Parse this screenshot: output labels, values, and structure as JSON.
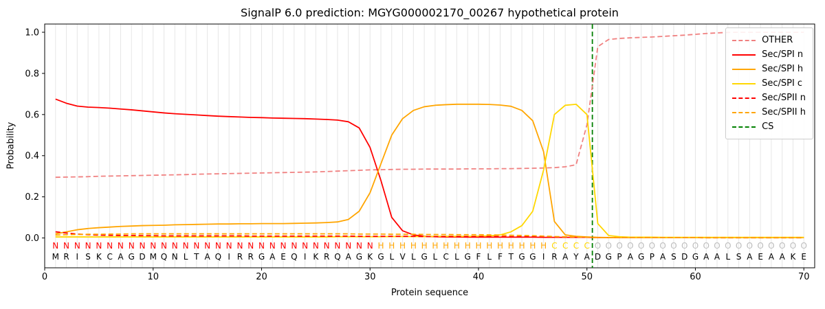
{
  "chart_data": {
    "type": "line",
    "title": "SignalP 6.0 prediction: MGYG000002170_00267 hypothetical protein",
    "xlabel": "Protein sequence",
    "ylabel": "Probability",
    "xlim": [
      0,
      71
    ],
    "ylim": [
      -0.145,
      1.04
    ],
    "x_ticks": [
      0,
      10,
      20,
      30,
      40,
      50,
      60,
      70
    ],
    "y_ticks": [
      0.0,
      0.2,
      0.4,
      0.6,
      0.8,
      1.0
    ],
    "grid": "vertical-gridline-per-residue",
    "grid_color": "#e6e6e6",
    "legend_position": "upper-right",
    "x_start": 1,
    "sequence": "MRISKCAGDMQNLTAQIRRGAEQIKRQAGKGLVLGLCLGFLFTGGIRAYADGPAGPASDGAALSAEAAKE",
    "sequence_color": "#000000",
    "regions": [
      {
        "label": "N",
        "start": 1,
        "end": 30,
        "color": "#ff0000"
      },
      {
        "label": "H",
        "start": 31,
        "end": 46,
        "color": "#ffa500"
      },
      {
        "label": "C",
        "start": 47,
        "end": 50,
        "color": "#ffd700"
      },
      {
        "label": "O",
        "start": 51,
        "end": 70,
        "color": "#bdbdbd"
      }
    ],
    "cs_line": {
      "name": "CS",
      "x": 50.5,
      "color": "#008000",
      "dash": "dashed"
    },
    "series": [
      {
        "name": "OTHER",
        "color": "#f08080",
        "dash": "dashed",
        "values": [
          0.295,
          0.296,
          0.297,
          0.298,
          0.3,
          0.301,
          0.302,
          0.303,
          0.304,
          0.305,
          0.306,
          0.307,
          0.308,
          0.31,
          0.311,
          0.312,
          0.313,
          0.314,
          0.315,
          0.316,
          0.317,
          0.318,
          0.319,
          0.32,
          0.321,
          0.323,
          0.325,
          0.327,
          0.329,
          0.331,
          0.332,
          0.333,
          0.334,
          0.334,
          0.335,
          0.335,
          0.335,
          0.335,
          0.336,
          0.336,
          0.336,
          0.337,
          0.337,
          0.338,
          0.339,
          0.34,
          0.342,
          0.346,
          0.356,
          0.55,
          0.93,
          0.965,
          0.97,
          0.973,
          0.975,
          0.977,
          0.98,
          0.983,
          0.986,
          0.99,
          0.994,
          0.997,
          0.999,
          1.0,
          1.0,
          1.0,
          1.0,
          1.0,
          1.0,
          1.0
        ]
      },
      {
        "name": "Sec/SPI n",
        "color": "#ff0000",
        "dash": "solid",
        "values": [
          0.675,
          0.655,
          0.641,
          0.636,
          0.634,
          0.631,
          0.627,
          0.623,
          0.618,
          0.613,
          0.608,
          0.604,
          0.601,
          0.598,
          0.595,
          0.592,
          0.59,
          0.588,
          0.586,
          0.585,
          0.583,
          0.582,
          0.581,
          0.58,
          0.578,
          0.576,
          0.573,
          0.565,
          0.535,
          0.44,
          0.28,
          0.1,
          0.035,
          0.015,
          0.008,
          0.006,
          0.005,
          0.005,
          0.004,
          0.004,
          0.004,
          0.004,
          0.004,
          0.004,
          0.004,
          0.003,
          0.003,
          0.003,
          0.003,
          0.003,
          0.002,
          0.002,
          0.002,
          0.002,
          0.002,
          0.002,
          0.002,
          0.002,
          0.002,
          0.002,
          0.002,
          0.002,
          0.002,
          0.002,
          0.002,
          0.002,
          0.002,
          0.002,
          0.002,
          0.002
        ]
      },
      {
        "name": "Sec/SPI h",
        "color": "#ffa500",
        "dash": "solid",
        "values": [
          0.02,
          0.03,
          0.04,
          0.046,
          0.05,
          0.053,
          0.056,
          0.058,
          0.06,
          0.061,
          0.062,
          0.064,
          0.065,
          0.066,
          0.067,
          0.068,
          0.068,
          0.069,
          0.069,
          0.07,
          0.07,
          0.07,
          0.071,
          0.072,
          0.073,
          0.075,
          0.078,
          0.09,
          0.13,
          0.22,
          0.36,
          0.5,
          0.58,
          0.62,
          0.638,
          0.645,
          0.648,
          0.65,
          0.65,
          0.65,
          0.649,
          0.646,
          0.64,
          0.62,
          0.57,
          0.42,
          0.08,
          0.015,
          0.008,
          0.005,
          0.003,
          0.002,
          0.002,
          0.002,
          0.002,
          0.002,
          0.002,
          0.002,
          0.002,
          0.002,
          0.002,
          0.002,
          0.002,
          0.002,
          0.002,
          0.002,
          0.002,
          0.002,
          0.002,
          0.002
        ]
      },
      {
        "name": "Sec/SPI c",
        "color": "#ffd700",
        "dash": "solid",
        "values": [
          0.005,
          0.005,
          0.005,
          0.005,
          0.005,
          0.005,
          0.005,
          0.005,
          0.005,
          0.005,
          0.005,
          0.005,
          0.005,
          0.005,
          0.005,
          0.005,
          0.005,
          0.005,
          0.005,
          0.005,
          0.005,
          0.005,
          0.005,
          0.005,
          0.005,
          0.005,
          0.006,
          0.006,
          0.006,
          0.006,
          0.006,
          0.007,
          0.007,
          0.007,
          0.007,
          0.008,
          0.008,
          0.008,
          0.008,
          0.009,
          0.01,
          0.015,
          0.03,
          0.06,
          0.13,
          0.33,
          0.6,
          0.645,
          0.65,
          0.6,
          0.07,
          0.012,
          0.006,
          0.004,
          0.004,
          0.004,
          0.003,
          0.003,
          0.003,
          0.003,
          0.003,
          0.003,
          0.003,
          0.003,
          0.003,
          0.003,
          0.003,
          0.003,
          0.003,
          0.003
        ]
      },
      {
        "name": "Sec/SPII n",
        "color": "#ff0000",
        "dash": "dashed",
        "values": [
          0.03,
          0.024,
          0.019,
          0.016,
          0.014,
          0.013,
          0.012,
          0.012,
          0.011,
          0.011,
          0.01,
          0.01,
          0.01,
          0.01,
          0.01,
          0.01,
          0.01,
          0.01,
          0.009,
          0.009,
          0.009,
          0.009,
          0.009,
          0.009,
          0.009,
          0.009,
          0.009,
          0.009,
          0.008,
          0.008,
          0.008,
          0.008,
          0.008,
          0.008,
          0.007,
          0.007,
          0.007,
          0.007,
          0.007,
          0.007,
          0.007,
          0.007,
          0.006,
          0.006,
          0.006,
          0.005,
          0.005,
          0.004,
          0.004,
          0.003,
          0.002,
          0.002,
          0.002,
          0.002,
          0.002,
          0.002,
          0.002,
          0.002,
          0.002,
          0.002,
          0.001,
          0.001,
          0.001,
          0.001,
          0.001,
          0.001,
          0.001,
          0.001,
          0.001,
          0.001
        ]
      },
      {
        "name": "Sec/SPII h",
        "color": "#ffa500",
        "dash": "dashed",
        "values": [
          0.014,
          0.016,
          0.017,
          0.018,
          0.018,
          0.019,
          0.019,
          0.02,
          0.02,
          0.02,
          0.02,
          0.02,
          0.02,
          0.02,
          0.02,
          0.02,
          0.02,
          0.02,
          0.02,
          0.02,
          0.02,
          0.02,
          0.02,
          0.02,
          0.02,
          0.02,
          0.02,
          0.02,
          0.019,
          0.019,
          0.019,
          0.018,
          0.018,
          0.018,
          0.017,
          0.017,
          0.017,
          0.016,
          0.016,
          0.016,
          0.015,
          0.014,
          0.013,
          0.012,
          0.011,
          0.009,
          0.007,
          0.006,
          0.005,
          0.004,
          0.002,
          0.002,
          0.002,
          0.002,
          0.002,
          0.002,
          0.002,
          0.002,
          0.002,
          0.002,
          0.001,
          0.001,
          0.001,
          0.001,
          0.001,
          0.001,
          0.001,
          0.001,
          0.001,
          0.001
        ]
      }
    ]
  }
}
